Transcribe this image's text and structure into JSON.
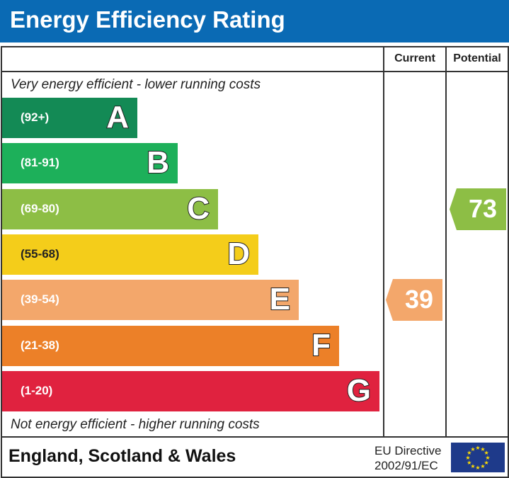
{
  "title": "Energy Efficiency Rating",
  "chart_data": {
    "type": "bar",
    "columns": [
      "Current",
      "Potential"
    ],
    "top_note": "Very energy efficient - lower running costs",
    "bottom_note": "Not energy efficient - higher running costs",
    "bands": [
      {
        "letter": "A",
        "range": "(92+)",
        "color": "#138a55"
      },
      {
        "letter": "B",
        "range": "(81-91)",
        "color": "#1db05a"
      },
      {
        "letter": "C",
        "range": "(69-80)",
        "color": "#8dbe45"
      },
      {
        "letter": "D",
        "range": "(55-68)",
        "color": "#f4cd1a"
      },
      {
        "letter": "E",
        "range": "(39-54)",
        "color": "#f3a76b"
      },
      {
        "letter": "F",
        "range": "(21-38)",
        "color": "#ec8028"
      },
      {
        "letter": "G",
        "range": "(1-20)",
        "color": "#e0223f"
      }
    ],
    "current": {
      "value": "39",
      "band": "E",
      "color": "#f3a76b"
    },
    "potential": {
      "value": "73",
      "band": "C",
      "color": "#8dbe45"
    }
  },
  "footer": {
    "region": "England, Scotland & Wales",
    "directive_line1": "EU Directive",
    "directive_line2": "2002/91/EC"
  },
  "colors": {
    "header": "#0a6ab4",
    "flag": "#1e3a8a",
    "stars": "#ffdd00"
  }
}
